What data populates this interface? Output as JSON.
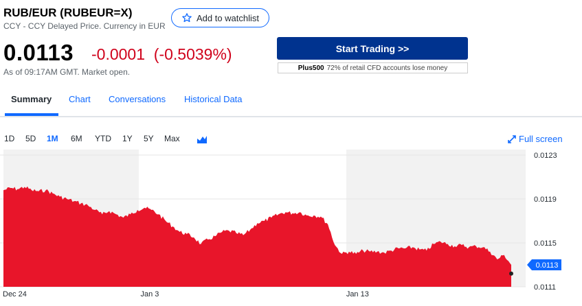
{
  "quote": {
    "title": "RUB/EUR (RUBEUR=X)",
    "subtitle": "CCY - CCY Delayed Price. Currency in EUR",
    "watchlist_label": "Add to watchlist",
    "price": "0.0113",
    "change": "-0.0001  (-0.5039%)",
    "as_of": "As of 09:17AM GMT. Market open."
  },
  "ad": {
    "button_label": "Start Trading >>",
    "brand": "Plus500",
    "disclaimer": "72% of retail CFD accounts lose money"
  },
  "tabs": [
    {
      "label": "Summary",
      "active": true
    },
    {
      "label": "Chart"
    },
    {
      "label": "Conversations"
    },
    {
      "label": "Historical Data"
    }
  ],
  "ranges": [
    {
      "label": "1D"
    },
    {
      "label": "5D"
    },
    {
      "label": "1M",
      "active": true
    },
    {
      "label": "6M"
    },
    {
      "label": "YTD"
    },
    {
      "label": "1Y"
    },
    {
      "label": "5Y"
    },
    {
      "label": "Max"
    }
  ],
  "fullscreen_label": "Full screen",
  "colors": {
    "accent": "#0f69ff",
    "negative": "#d0021b",
    "area": "#e8152a",
    "brand_button": "#00338f"
  },
  "chart_data": {
    "type": "area",
    "ylim": [
      0.0111,
      0.0123
    ],
    "y_ticks": [
      "0.0123",
      "0.0119",
      "0.0115",
      "0.0111"
    ],
    "x_tick_labels": [
      "Dec 24",
      "Jan 3",
      "Jan 13"
    ],
    "current_value_label": "0.0113",
    "series": [
      {
        "values": [
          0.01198,
          0.012,
          0.01199,
          0.01201,
          0.01198,
          0.01197,
          0.01198,
          0.01195,
          0.01192,
          0.0119,
          0.01188,
          0.01186,
          0.01184,
          0.0118,
          0.01176,
          0.01179,
          0.01176,
          0.01173,
          0.01176,
          0.0118,
          0.01182,
          0.0118,
          0.01176,
          0.0117,
          0.01165,
          0.0116,
          0.01158,
          0.01155,
          0.01149,
          0.01153,
          0.01156,
          0.0116,
          0.01161,
          0.01159,
          0.01157,
          0.01162,
          0.01168,
          0.0117,
          0.01173,
          0.01176,
          0.01178,
          0.01177,
          0.01178,
          0.01175,
          0.01175,
          0.01174,
          0.01167,
          0.01148,
          0.0114,
          0.01142,
          0.0114,
          0.01143,
          0.01142,
          0.01142,
          0.01141,
          0.01143,
          0.01145,
          0.01145,
          0.01146,
          0.01144,
          0.01143,
          0.01149,
          0.01151,
          0.01149,
          0.01147,
          0.01148,
          0.01146,
          0.01147,
          0.01146,
          0.01142,
          0.01135,
          0.01139,
          0.0113
        ]
      }
    ]
  }
}
